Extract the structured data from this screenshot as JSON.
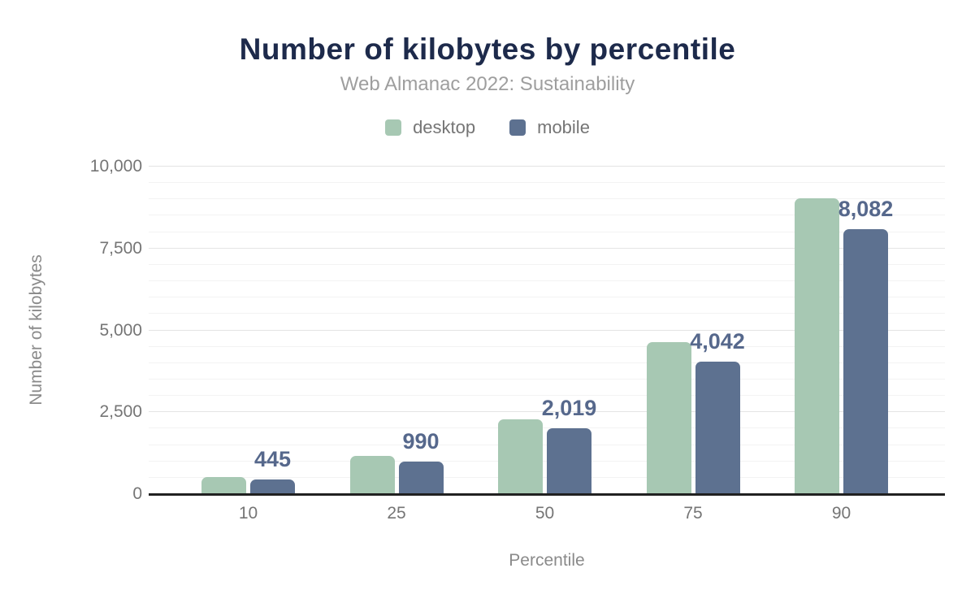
{
  "title": "Number of kilobytes by percentile",
  "subtitle": "Web Almanac 2022: Sustainability",
  "legend": [
    {
      "label": "desktop",
      "color": "#a7c8b3"
    },
    {
      "label": "mobile",
      "color": "#5d7190"
    }
  ],
  "colors": {
    "title": "#1d2a4b",
    "subtitle": "#9e9e9e",
    "axis_text": "#757575",
    "data_label": "#56688c",
    "desktop_bar": "#a7c8b3",
    "mobile_bar": "#5d7190",
    "gridline_minor": "#f3f3f3",
    "gridline_major": "#e4e4e4",
    "baseline": "#212121"
  },
  "chart_data": {
    "type": "bar",
    "title": "Number of kilobytes by percentile",
    "subtitle": "Web Almanac 2022: Sustainability",
    "xlabel": "Percentile",
    "ylabel": "Number of kilobytes",
    "categories": [
      "10",
      "25",
      "50",
      "75",
      "90"
    ],
    "series": [
      {
        "name": "desktop",
        "color": "#a7c8b3",
        "values": [
          525,
          1160,
          2290,
          4630,
          9030
        ],
        "labels": [
          "",
          "",
          "",
          "",
          ""
        ]
      },
      {
        "name": "mobile",
        "color": "#5d7190",
        "values": [
          445,
          990,
          2019,
          4042,
          8082
        ],
        "labels": [
          "445",
          "990",
          "2,019",
          "4,042",
          "8,082"
        ]
      }
    ],
    "ylim": [
      0,
      10000
    ],
    "yticks": [
      0,
      2500,
      5000,
      7500,
      10000
    ],
    "ytick_labels": [
      "0",
      "2,500",
      "5,000",
      "7,500",
      "10,000"
    ],
    "minor_grid_step": 500,
    "grid": "horizontal",
    "legend_position": "top"
  }
}
